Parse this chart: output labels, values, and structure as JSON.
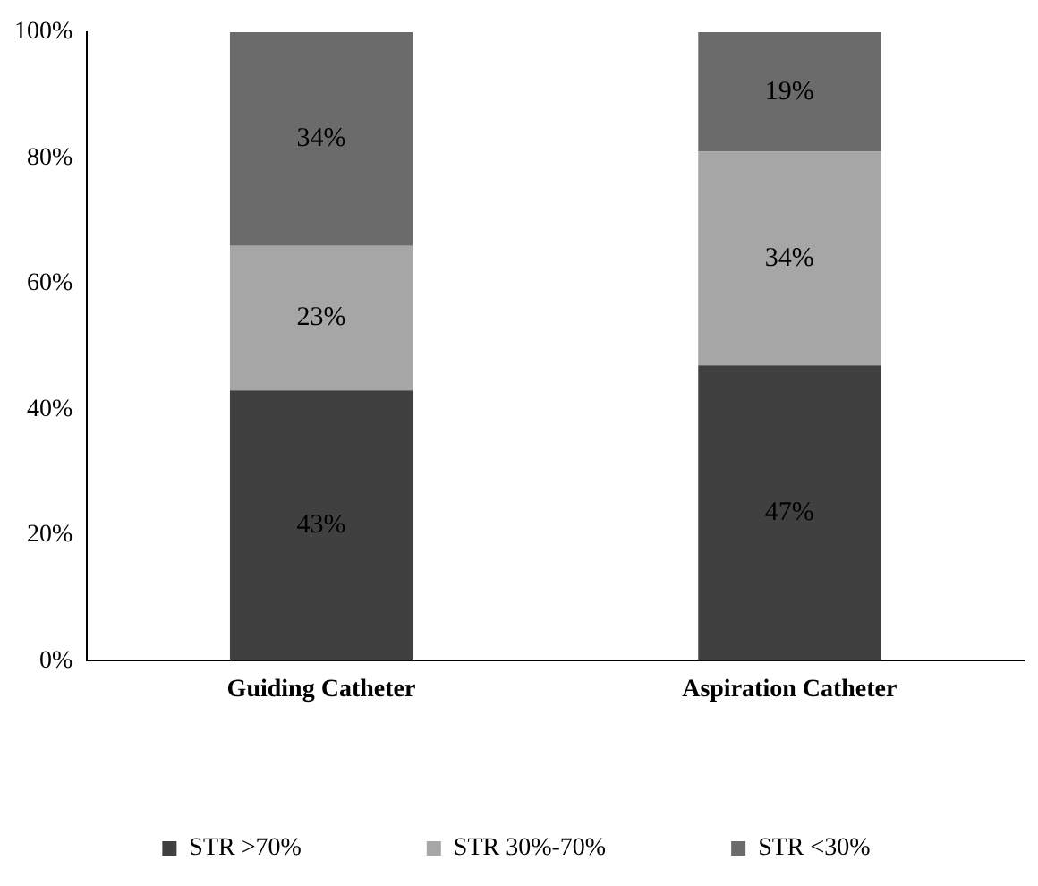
{
  "chart_data": {
    "type": "bar",
    "stacked": true,
    "categories": [
      "Guiding Catheter",
      "Aspiration Catheter"
    ],
    "series": [
      {
        "name": "STR >70%",
        "color": "#404040",
        "values": [
          43,
          47
        ],
        "value_labels": [
          "43%",
          "47%"
        ]
      },
      {
        "name": "STR 30%-70%",
        "color": "#a6a6a6",
        "values": [
          23,
          34
        ],
        "value_labels": [
          "23%",
          "34%"
        ]
      },
      {
        "name": "STR <30%",
        "color": "#6b6b6b",
        "values": [
          34,
          19
        ],
        "value_labels": [
          "34%",
          "19%"
        ]
      }
    ],
    "ylim": [
      0,
      100
    ],
    "yticks": [
      {
        "value": 0,
        "label": "0%"
      },
      {
        "value": 20,
        "label": "20%"
      },
      {
        "value": 40,
        "label": "40%"
      },
      {
        "value": 60,
        "label": "60%"
      },
      {
        "value": 80,
        "label": "80%"
      },
      {
        "value": 100,
        "label": "100%"
      }
    ],
    "grid": false,
    "legend": "bottom"
  }
}
